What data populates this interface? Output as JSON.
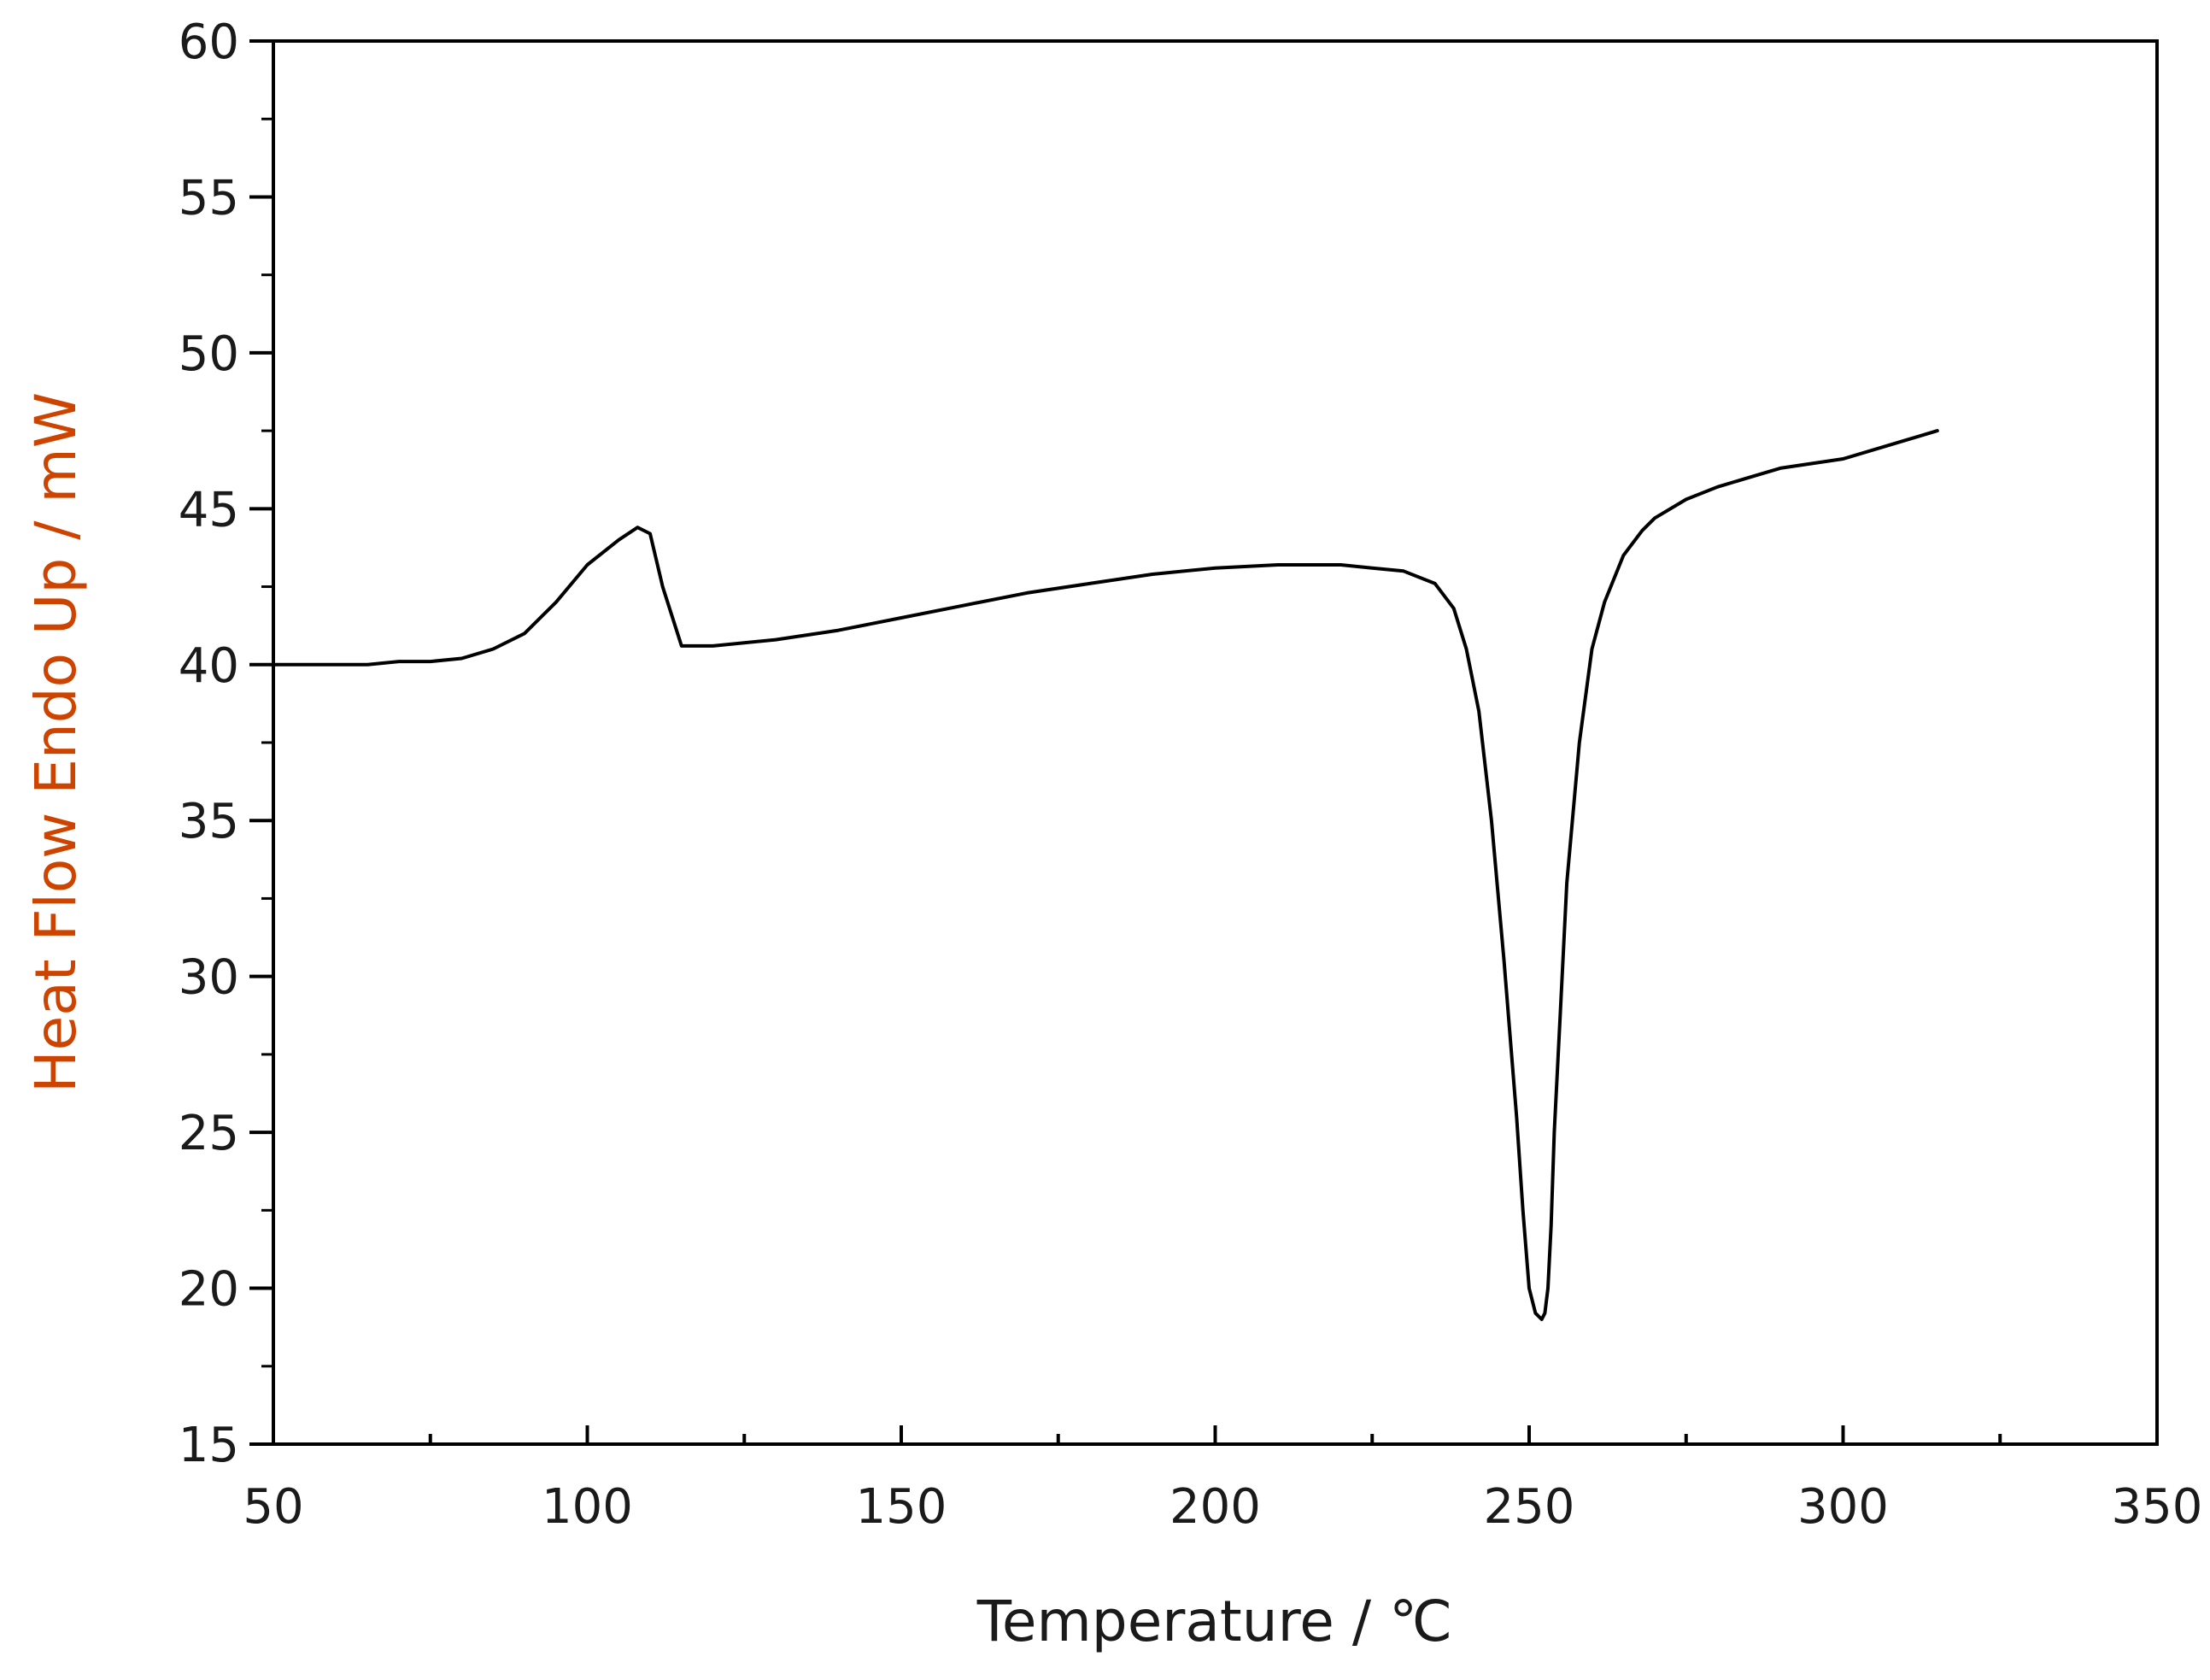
{
  "chart_data": {
    "type": "line",
    "title": "",
    "xlabel": "Temperature / ℃",
    "ylabel": "Heat Flow Endo Up / mW",
    "xlim": [
      50,
      350
    ],
    "ylim": [
      15,
      60
    ],
    "x_ticks": [
      50,
      100,
      150,
      200,
      250,
      300,
      350
    ],
    "y_ticks": [
      15,
      20,
      25,
      30,
      35,
      40,
      45,
      50,
      55,
      60
    ],
    "grid": false,
    "legend": "none",
    "colors": {
      "line": "#000000",
      "axis": "#000000",
      "xlabel": "#1a1a1a",
      "ylabel": "#cc4400"
    },
    "series": [
      {
        "x": [
          50,
          60,
          65,
          70,
          75,
          80,
          85,
          90,
          95,
          100,
          105,
          108,
          110,
          112,
          115,
          120,
          130,
          140,
          150,
          160,
          170,
          180,
          190,
          200,
          210,
          220,
          225,
          230,
          235,
          238,
          240,
          242,
          244,
          246,
          248,
          249,
          250,
          251,
          252,
          252.5,
          253,
          253.5,
          254,
          255,
          256,
          258,
          260,
          262,
          265,
          268,
          270,
          275,
          280,
          285,
          290,
          300,
          310,
          315
        ],
        "y": [
          40.0,
          40.0,
          40.0,
          40.1,
          40.1,
          40.2,
          40.5,
          41.0,
          42.0,
          43.2,
          44.0,
          44.4,
          44.2,
          42.5,
          40.6,
          40.6,
          40.8,
          41.1,
          41.5,
          41.9,
          42.3,
          42.6,
          42.9,
          43.1,
          43.2,
          43.2,
          43.1,
          43.0,
          42.6,
          41.8,
          40.5,
          38.5,
          35.0,
          30.5,
          25.5,
          22.5,
          20.0,
          19.2,
          19.0,
          19.2,
          20.0,
          22.0,
          25.0,
          29.0,
          33.0,
          37.5,
          40.5,
          42.0,
          43.5,
          44.3,
          44.7,
          45.3,
          45.7,
          46.0,
          46.3,
          46.6,
          47.2,
          47.5
        ]
      }
    ]
  }
}
